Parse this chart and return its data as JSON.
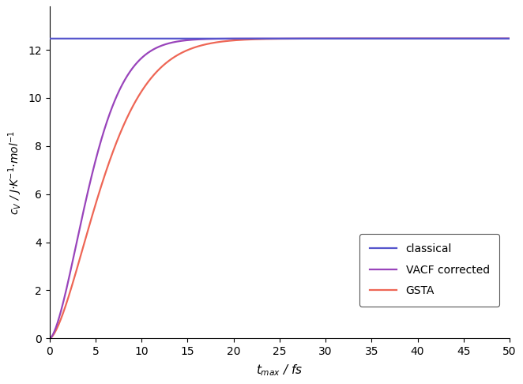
{
  "classical_value": 12.47,
  "x_min": 0,
  "x_max": 50,
  "y_min": 0,
  "y_max": 13.8,
  "x_ticks": [
    0,
    5,
    10,
    15,
    20,
    25,
    30,
    35,
    40,
    45,
    50
  ],
  "y_ticks": [
    0,
    2,
    4,
    6,
    8,
    10,
    12
  ],
  "xlabel": "$t_{max}$ / fs",
  "ylabel": "$c_V$ / J·K$^{-1}$·mol$^{-1}$",
  "classical_color": "#5555cc",
  "vacf_color": "#9944bb",
  "gsta_color": "#ee6655",
  "vacf_k": 0.55,
  "vacf_n": 1.6,
  "gsta_k": 0.38,
  "gsta_n": 1.55,
  "legend_labels": [
    "classical",
    "VACF corrected",
    "GSTA"
  ],
  "background_color": "#ffffff",
  "linewidth": 1.6
}
